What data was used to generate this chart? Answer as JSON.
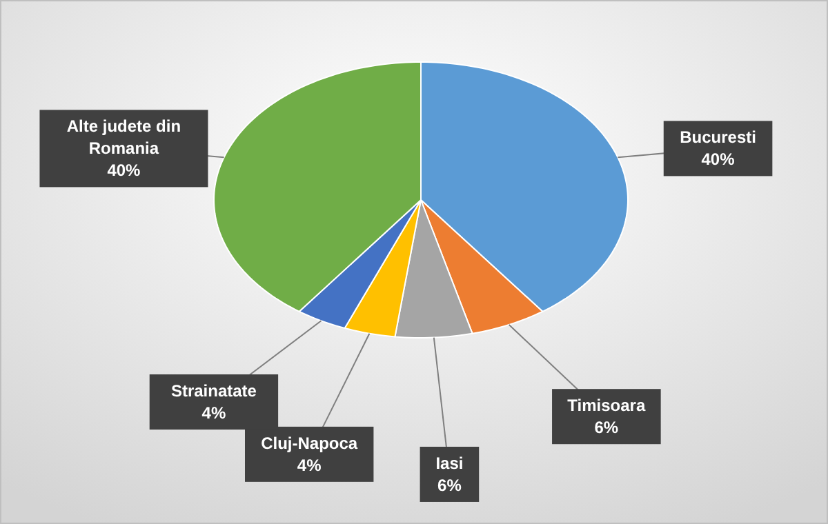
{
  "chart_data": {
    "type": "pie",
    "categories": [
      "Bucuresti",
      "Timisoara",
      "Iasi",
      "Cluj-Napoca",
      "Strainatate",
      "Alte judete din Romania"
    ],
    "values": [
      40,
      6,
      6,
      4,
      4,
      40
    ],
    "colors": [
      "#5b9bd5",
      "#ed7d31",
      "#a5a5a5",
      "#ffc000",
      "#4472c4",
      "#70ad47"
    ],
    "value_labels": [
      "40%",
      "6%",
      "6%",
      "4%",
      "4%",
      "40%"
    ]
  }
}
